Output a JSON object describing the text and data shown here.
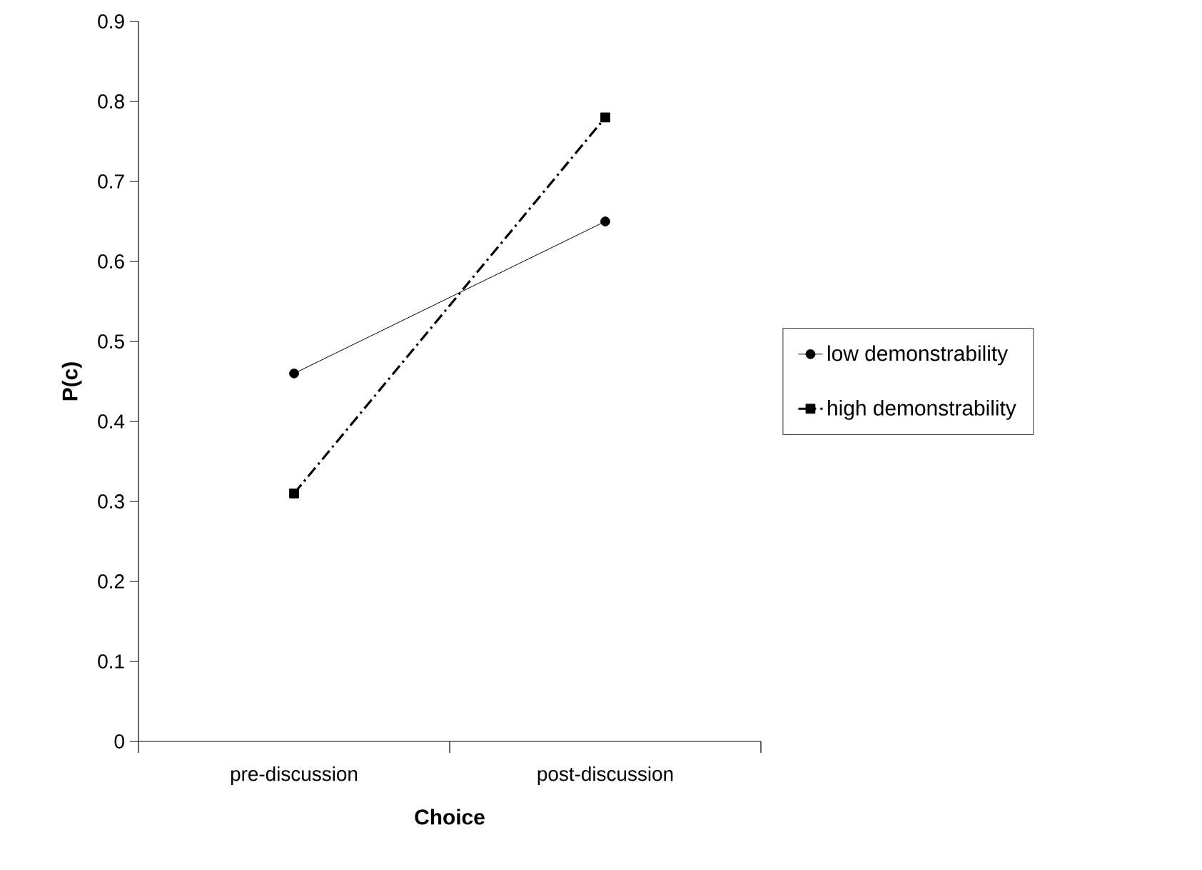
{
  "chart_data": {
    "type": "line",
    "xlabel": "Choice",
    "ylabel": "P(c)",
    "categories": [
      "pre-discussion",
      "post-discussion"
    ],
    "series": [
      {
        "name": "low demonstrability",
        "color": "#000000",
        "values": [
          0.46,
          0.65
        ],
        "marker": "circle",
        "line_style": "solid"
      },
      {
        "name": "high demonstrability",
        "color": "#000000",
        "values": [
          0.31,
          0.78
        ],
        "marker": "square",
        "line_style": "dashdot"
      }
    ],
    "ylim": [
      0,
      0.9
    ],
    "yticks": [
      0,
      0.1,
      0.2,
      0.3,
      0.4,
      0.5,
      0.6,
      0.7,
      0.8,
      0.9
    ],
    "grid": false,
    "legend": "right"
  }
}
